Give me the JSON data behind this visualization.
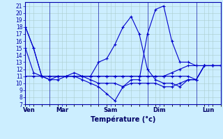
{
  "bg_color": "#cceeff",
  "grid_color": "#aacccc",
  "line_color": "#0000cc",
  "xlabel": "Température (°c)",
  "yticks": [
    7,
    8,
    9,
    10,
    11,
    12,
    13,
    14,
    15,
    16,
    17,
    18,
    19,
    20,
    21
  ],
  "ylim": [
    7,
    21.5
  ],
  "xlim": [
    0,
    24
  ],
  "day_ticks": [
    0.5,
    4.5,
    10.5,
    16.5,
    22.5
  ],
  "day_labels": [
    "Ven",
    "Mar",
    "Sam",
    "Dim",
    "Lun"
  ],
  "day_vlines": [
    0,
    3,
    9,
    15,
    21,
    24
  ],
  "lines": [
    {
      "x": [
        0,
        1,
        2,
        3,
        4,
        5,
        6,
        7,
        8,
        9,
        10,
        11,
        12,
        13,
        14,
        15,
        16,
        17,
        18,
        19,
        20,
        21,
        22,
        23,
        24
      ],
      "y": [
        18,
        15,
        11,
        11,
        11,
        11,
        11,
        11,
        11,
        11,
        11,
        11,
        11,
        11,
        11,
        11,
        11,
        11,
        11.5,
        12,
        12.5,
        12.5,
        12.5,
        12.5,
        12.5
      ]
    },
    {
      "x": [
        0,
        1,
        2,
        3,
        4,
        5,
        6,
        7,
        8,
        9,
        10,
        11,
        12,
        13,
        14,
        15,
        16,
        17,
        18,
        19,
        20,
        21,
        22,
        23,
        24
      ],
      "y": [
        18,
        15,
        11,
        10.5,
        10.5,
        11,
        11,
        10.5,
        10,
        9.5,
        8.5,
        7.5,
        9.5,
        10,
        10,
        10,
        10,
        9.5,
        9.5,
        10,
        10.5,
        10.5,
        12.5,
        12.5,
        12.5
      ]
    },
    {
      "x": [
        0,
        1,
        2,
        3,
        4,
        5,
        6,
        7,
        8,
        9,
        10,
        11,
        12,
        13,
        14,
        15,
        16,
        17,
        18,
        19,
        20,
        21,
        22,
        23,
        24
      ],
      "y": [
        15,
        11.5,
        11,
        10.5,
        11,
        11,
        11.5,
        11,
        11,
        13,
        13.5,
        15.5,
        18,
        19.5,
        17,
        12,
        10.5,
        10,
        10,
        9.5,
        10.5,
        10.5,
        12.5,
        12.5,
        12.5
      ]
    },
    {
      "x": [
        0,
        1,
        2,
        3,
        4,
        5,
        6,
        7,
        8,
        9,
        10,
        11,
        12,
        13,
        14,
        15,
        16,
        17,
        18,
        19,
        20,
        21,
        22,
        23,
        24
      ],
      "y": [
        11,
        11,
        11,
        11,
        11,
        11,
        11,
        11,
        11,
        11,
        11,
        11,
        11,
        11,
        11,
        11,
        11,
        11,
        11,
        11,
        11,
        10.5,
        12.5,
        12.5,
        12.5
      ]
    },
    {
      "x": [
        3,
        4,
        5,
        6,
        7,
        8,
        9,
        10,
        11,
        12,
        13,
        14,
        15,
        16,
        17,
        18,
        19,
        20,
        21,
        22,
        23,
        24
      ],
      "y": [
        11,
        11,
        11,
        11,
        11,
        10.5,
        10,
        10,
        10,
        9.5,
        10.5,
        10.5,
        17,
        20.5,
        21,
        16,
        13,
        13,
        12.5,
        12.5,
        12.5,
        12.5
      ]
    }
  ]
}
